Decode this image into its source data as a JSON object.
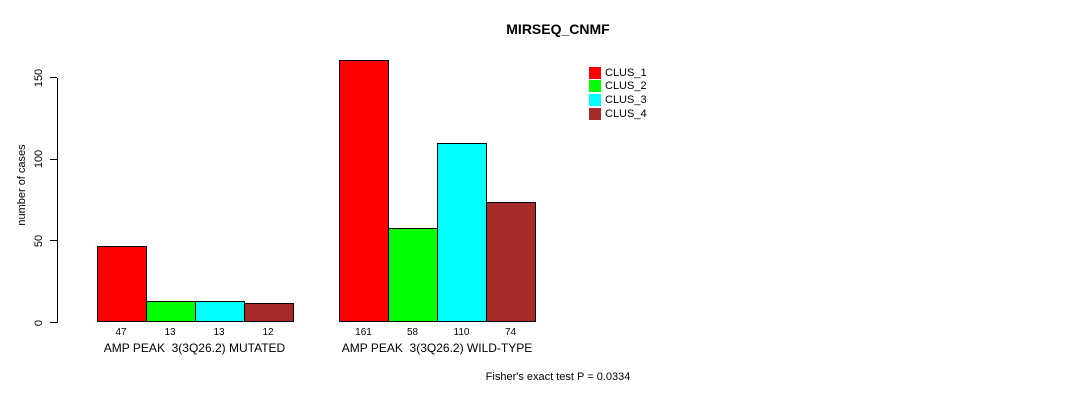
{
  "chart_data": {
    "type": "bar",
    "title": "MIRSEQ_CNMF",
    "xlabel": "",
    "ylabel": "number of cases",
    "ylim": [
      0,
      161
    ],
    "yticks": [
      0,
      50,
      100,
      150
    ],
    "grid": false,
    "legend_position": "top-right",
    "categories": [
      "AMP PEAK  3(3Q26.2) MUTATED",
      "AMP PEAK  3(3Q26.2) WILD-TYPE"
    ],
    "series": [
      {
        "name": "CLUS_1",
        "color": "#FF0000",
        "values": [
          47,
          161
        ]
      },
      {
        "name": "CLUS_2",
        "color": "#00FF00",
        "values": [
          13,
          58
        ]
      },
      {
        "name": "CLUS_3",
        "color": "#00FFFF",
        "values": [
          13,
          110
        ]
      },
      {
        "name": "CLUS_4",
        "color": "#A52A2A",
        "values": [
          12,
          74
        ]
      }
    ],
    "annotation": "Fisher's exact test P = 0.0334"
  }
}
